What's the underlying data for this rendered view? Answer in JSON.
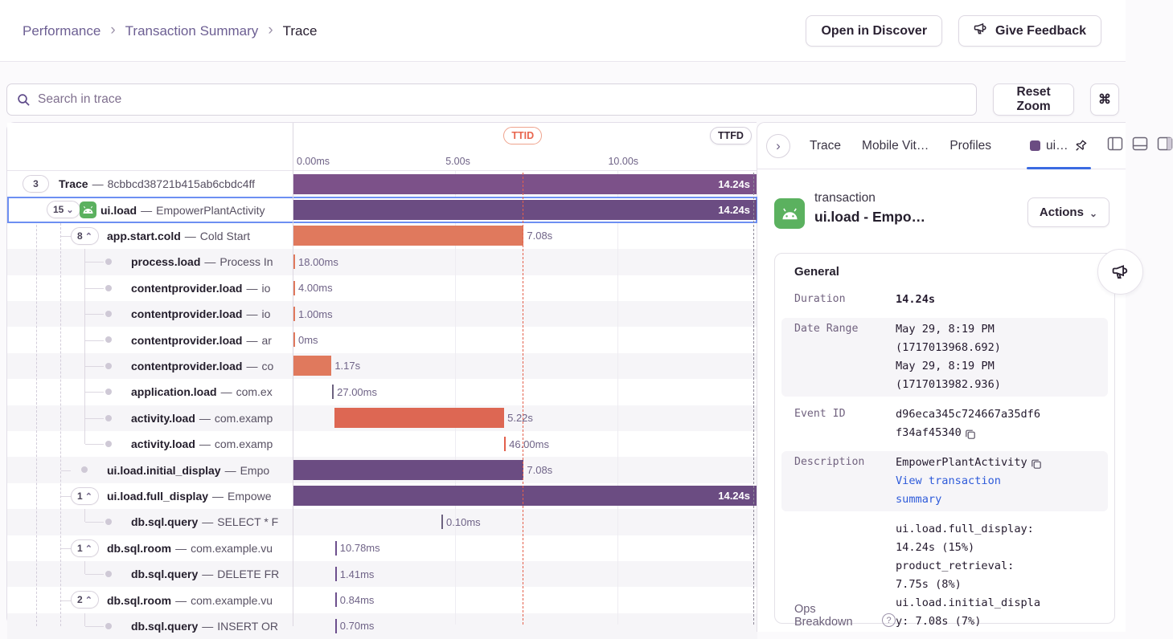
{
  "header": {
    "breadcrumb": [
      "Performance",
      "Transaction Summary",
      "Trace"
    ],
    "open_in_discover_label": "Open in Discover",
    "give_feedback_label": "Give Feedback"
  },
  "toolbar": {
    "search_placeholder": "Search in trace",
    "reset_zoom_label": "Reset Zoom",
    "shortcut_key": "⌘"
  },
  "timeline": {
    "duration_s": 14.24,
    "ticks": [
      {
        "label": "0.00ms",
        "s": 0
      },
      {
        "label": "5.00s",
        "s": 5
      },
      {
        "label": "10.00s",
        "s": 10
      }
    ],
    "markers": [
      {
        "label": "TTID",
        "s": 7.08,
        "style": "red"
      },
      {
        "label": "TTFD",
        "s": 14.24,
        "style": "gray"
      }
    ]
  },
  "colors": {
    "trace_bar": "#7c5189",
    "txn_purple": "#6b4c82",
    "orange": "#e0795d",
    "red_orange": "#dd6753",
    "bright_red": "#e2604c",
    "gray_tick": "#6d6280",
    "purple_tick": "#6d4f8d",
    "selection_blue": "#6d8ff2",
    "tab_underline": "#3b6be2"
  },
  "rows": [
    {
      "badge": "3",
      "chevron": "",
      "level": 0,
      "op": "Trace",
      "sep": "—",
      "desc": "8cbbcd38721b415ab6cbdc4ff",
      "bar": {
        "start": 0,
        "dur": 14.24,
        "color": "#7c5189",
        "label": "14.24s",
        "label_pos": "inside"
      }
    },
    {
      "badge": "15",
      "chevron": "down",
      "level": 1,
      "icon": "android",
      "op": "ui.load",
      "sep": "—",
      "desc": "EmpowerPlantActivity",
      "selected": true,
      "bar": {
        "start": 0,
        "dur": 14.24,
        "color": "#6b4c82",
        "label": "14.24s",
        "label_pos": "inside"
      }
    },
    {
      "badge": "8",
      "chevron": "up",
      "level": 2,
      "op": "app.start.cold",
      "sep": "—",
      "desc": "Cold Start",
      "bar": {
        "start": 0,
        "dur": 7.08,
        "color": "#e0795d",
        "label": "7.08s",
        "label_pos": "outside"
      }
    },
    {
      "dot": true,
      "level": 3,
      "op": "process.load",
      "sep": "—",
      "desc": "Process In",
      "bar": {
        "start": 0,
        "dur": 0.018,
        "color": "#e0795d",
        "label": "18.00ms",
        "label_pos": "outside",
        "tick": true
      }
    },
    {
      "dot": true,
      "level": 3,
      "op": "contentprovider.load",
      "sep": "—",
      "desc": "io",
      "bar": {
        "start": 0,
        "dur": 0.004,
        "color": "#e0795d",
        "label": "4.00ms",
        "label_pos": "outside",
        "tick": true
      }
    },
    {
      "dot": true,
      "level": 3,
      "op": "contentprovider.load",
      "sep": "—",
      "desc": "io",
      "bar": {
        "start": 0,
        "dur": 0.001,
        "color": "#e0795d",
        "label": "1.00ms",
        "label_pos": "outside",
        "tick": true
      }
    },
    {
      "dot": true,
      "level": 3,
      "op": "contentprovider.load",
      "sep": "—",
      "desc": "ar",
      "bar": {
        "start": 0,
        "dur": 0,
        "color": "#e0795d",
        "label": "0ms",
        "label_pos": "outside",
        "tick": true
      }
    },
    {
      "dot": true,
      "level": 3,
      "op": "contentprovider.load",
      "sep": "—",
      "desc": "co",
      "bar": {
        "start": 0,
        "dur": 1.17,
        "color": "#e0795d",
        "label": "1.17s",
        "label_pos": "outside"
      }
    },
    {
      "dot": true,
      "level": 3,
      "op": "application.load",
      "sep": "—",
      "desc": "com.ex",
      "bar": {
        "start": 1.19,
        "dur": 0.027,
        "color": "#6d6280",
        "label": "27.00ms",
        "label_pos": "outside",
        "tick": true
      }
    },
    {
      "dot": true,
      "level": 3,
      "op": "activity.load",
      "sep": "—",
      "desc": "com.examp",
      "bar": {
        "start": 1.26,
        "dur": 5.22,
        "color": "#dd6753",
        "label": "5.22s",
        "label_pos": "outside"
      }
    },
    {
      "dot": true,
      "level": 3,
      "op": "activity.load",
      "sep": "—",
      "desc": "com.examp",
      "bar": {
        "start": 6.48,
        "dur": 0.046,
        "color": "#e2604c",
        "label": "46.00ms",
        "label_pos": "outside",
        "tick": true
      }
    },
    {
      "dot": true,
      "level": 2,
      "op": "ui.load.initial_display",
      "sep": "—",
      "desc": "Empo",
      "bar": {
        "start": 0,
        "dur": 7.08,
        "color": "#6b4c82",
        "label": "7.08s",
        "label_pos": "outside"
      }
    },
    {
      "badge": "1",
      "chevron": "up",
      "level": 2,
      "op": "ui.load.full_display",
      "sep": "—",
      "desc": "Empowe",
      "bar": {
        "start": 0,
        "dur": 14.24,
        "color": "#6b4c82",
        "label": "14.24s",
        "label_pos": "inside"
      }
    },
    {
      "dot": true,
      "level": 3,
      "op": "db.sql.query",
      "sep": "—",
      "desc": "SELECT * F",
      "bar": {
        "start": 4.55,
        "dur": 0.0001,
        "color": "#6d6280",
        "label": "0.10ms",
        "label_pos": "outside",
        "tick": true
      }
    },
    {
      "badge": "1",
      "chevron": "up",
      "level": 2,
      "op": "db.sql.room",
      "sep": "—",
      "desc": "com.example.vu",
      "bar": {
        "start": 1.28,
        "dur": 0.0108,
        "color": "#6d4f8d",
        "label": "10.78ms",
        "label_pos": "outside",
        "tick": true
      }
    },
    {
      "dot": true,
      "level": 3,
      "op": "db.sql.query",
      "sep": "—",
      "desc": "DELETE FR",
      "bar": {
        "start": 1.28,
        "dur": 0.0014,
        "color": "#6d4f8d",
        "label": "1.41ms",
        "label_pos": "outside",
        "tick": true
      }
    },
    {
      "badge": "2",
      "chevron": "up",
      "level": 2,
      "op": "db.sql.room",
      "sep": "—",
      "desc": "com.example.vu",
      "bar": {
        "start": 1.28,
        "dur": 0.0008,
        "color": "#6d4f8d",
        "label": "0.84ms",
        "label_pos": "outside",
        "tick": true
      }
    },
    {
      "dot": true,
      "level": 3,
      "op": "db.sql.query",
      "sep": "—",
      "desc": "INSERT OR",
      "bar": {
        "start": 1.28,
        "dur": 0.0007,
        "color": "#6d4f8d",
        "label": "0.70ms",
        "label_pos": "outside",
        "tick": true
      }
    }
  ],
  "drawer": {
    "tabs": [
      {
        "label": "Trace"
      },
      {
        "label": "Mobile Vit…"
      },
      {
        "label": "Profiles"
      },
      {
        "label": "ui…",
        "active": true,
        "swatch": "#6b4c82",
        "pinned": true
      }
    ],
    "transaction": {
      "type_label": "transaction",
      "title": "ui.load - Empo…",
      "actions_label": "Actions"
    },
    "general": {
      "title": "General",
      "rows": [
        {
          "label": "Duration",
          "bg": "white",
          "lines": [
            {
              "text": "14.24s",
              "bold": true
            }
          ]
        },
        {
          "label": "Date Range",
          "bg": "gray",
          "lines": [
            {
              "text": "May 29, 8:19 PM"
            },
            {
              "text": "(1717013968.692)"
            },
            {
              "text": "May 29, 8:19 PM"
            },
            {
              "text": "(1717013982.936)"
            }
          ]
        },
        {
          "label": "Event ID",
          "bg": "white",
          "lines": [
            {
              "text": "d96eca345c724667a35df6"
            },
            {
              "text": "f34af45340",
              "copy": true
            }
          ]
        },
        {
          "label": "Description",
          "bg": "gray",
          "lines": [
            {
              "text": "EmpowerPlantActivity",
              "copy": true
            },
            {
              "text": "View transaction",
              "link": true
            },
            {
              "text": "summary",
              "link": true
            }
          ]
        },
        {
          "label": "Ops Breakdown",
          "bg": "white",
          "label_sans": true,
          "label_bottom": true,
          "help": true,
          "lines": [
            {
              "text": "ui.load.full_display:"
            },
            {
              "text": "14.24s (15%)"
            },
            {
              "text": "product_retrieval:"
            },
            {
              "text": "7.75s (8%)"
            },
            {
              "text": "ui.load.initial_displa"
            },
            {
              "text": "y: 7.08s (7%)"
            }
          ]
        }
      ]
    }
  }
}
